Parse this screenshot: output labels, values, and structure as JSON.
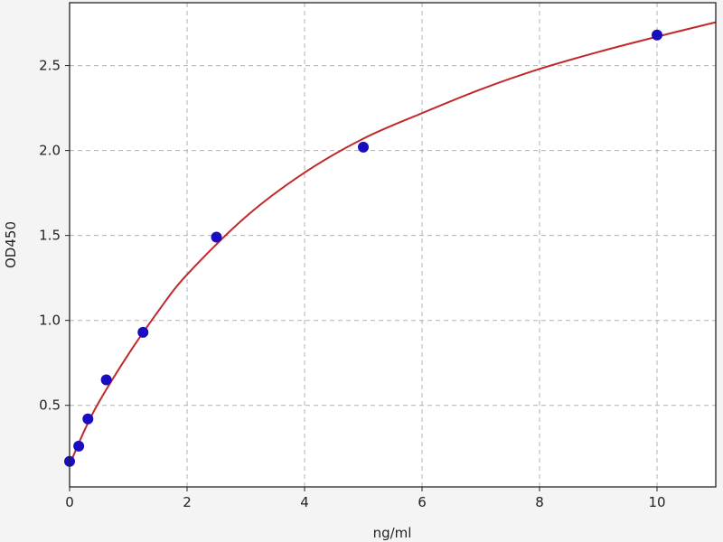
{
  "chart_data": {
    "type": "scatter",
    "title": "",
    "xlabel": "ng/ml",
    "ylabel": "OD450",
    "xlim": [
      0,
      11
    ],
    "ylim": [
      0.02,
      2.87
    ],
    "xticks": [
      0,
      2,
      4,
      6,
      8,
      10
    ],
    "yticks": [
      0.5,
      1.0,
      1.5,
      2.0,
      2.5
    ],
    "xtick_labels": [
      "0",
      "2",
      "4",
      "6",
      "8",
      "10"
    ],
    "ytick_labels": [
      "0.5",
      "1.0",
      "1.5",
      "2.0",
      "2.5"
    ],
    "grid": true,
    "points": {
      "x": [
        0,
        0.156,
        0.312,
        0.625,
        1.25,
        2.5,
        5,
        10
      ],
      "y": [
        0.17,
        0.26,
        0.42,
        0.65,
        0.93,
        1.49,
        2.02,
        2.68
      ],
      "color": "#1a0dbf"
    },
    "fit_curve": {
      "x": [
        0,
        0.25,
        0.5,
        1,
        1.5,
        2,
        3,
        4,
        5,
        6,
        7,
        8,
        9,
        10,
        11
      ],
      "y": [
        0.15,
        0.35,
        0.52,
        0.8,
        1.05,
        1.27,
        1.61,
        1.87,
        2.07,
        2.22,
        2.36,
        2.48,
        2.58,
        2.67,
        2.755
      ],
      "color": "#c0282a"
    }
  }
}
